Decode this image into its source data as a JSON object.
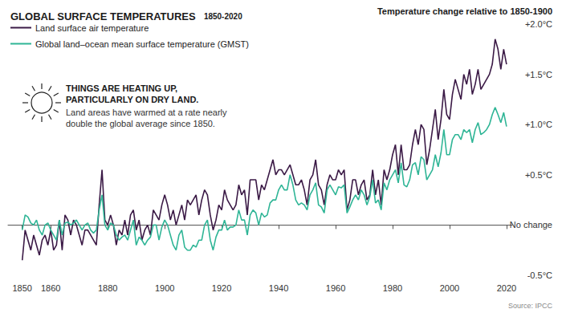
{
  "chart_data": {
    "type": "line",
    "title": "GLOBAL SURFACE TEMPERATURES",
    "subtitle": "1850-2020",
    "y_label": "Temperature change relative to 1850-1900",
    "annotation": {
      "heading": [
        "THINGS ARE HEATING UP,",
        "PARTICULARLY ON DRY LAND."
      ],
      "text": [
        "Land areas have warmed at a rate nearly",
        "double the global average since 1850."
      ]
    },
    "source": "Source: IPCC",
    "legend": "upper left",
    "grid": false,
    "xlim": [
      1845,
      2022
    ],
    "xticks": [
      1850,
      1860,
      1880,
      1900,
      1920,
      1940,
      1960,
      1980,
      2000,
      2020
    ],
    "ylim": [
      -0.5,
      2.0
    ],
    "yticks": [
      {
        "value": -0.5,
        "label": "-0.5°C"
      },
      {
        "value": 0,
        "label": "No change"
      },
      {
        "value": 0.5,
        "label": "+0.5°C"
      },
      {
        "value": 1.0,
        "label": "+1.0°C"
      },
      {
        "value": 1.5,
        "label": "+1.5°C"
      },
      {
        "value": 2.0,
        "label": "+2.0°C"
      }
    ],
    "x": [
      1850,
      1851,
      1852,
      1853,
      1854,
      1855,
      1856,
      1857,
      1858,
      1859,
      1860,
      1861,
      1862,
      1863,
      1864,
      1865,
      1866,
      1867,
      1868,
      1869,
      1870,
      1871,
      1872,
      1873,
      1874,
      1875,
      1876,
      1877,
      1878,
      1879,
      1880,
      1881,
      1882,
      1883,
      1884,
      1885,
      1886,
      1887,
      1888,
      1889,
      1890,
      1891,
      1892,
      1893,
      1894,
      1895,
      1896,
      1897,
      1898,
      1899,
      1900,
      1901,
      1902,
      1903,
      1904,
      1905,
      1906,
      1907,
      1908,
      1909,
      1910,
      1911,
      1912,
      1913,
      1914,
      1915,
      1916,
      1917,
      1918,
      1919,
      1920,
      1921,
      1922,
      1923,
      1924,
      1925,
      1926,
      1927,
      1928,
      1929,
      1930,
      1931,
      1932,
      1933,
      1934,
      1935,
      1936,
      1937,
      1938,
      1939,
      1940,
      1941,
      1942,
      1943,
      1944,
      1945,
      1946,
      1947,
      1948,
      1949,
      1950,
      1951,
      1952,
      1953,
      1954,
      1955,
      1956,
      1957,
      1958,
      1959,
      1960,
      1961,
      1962,
      1963,
      1964,
      1965,
      1966,
      1967,
      1968,
      1969,
      1970,
      1971,
      1972,
      1973,
      1974,
      1975,
      1976,
      1977,
      1978,
      1979,
      1980,
      1981,
      1982,
      1983,
      1984,
      1985,
      1986,
      1987,
      1988,
      1989,
      1990,
      1991,
      1992,
      1993,
      1994,
      1995,
      1996,
      1997,
      1998,
      1999,
      2000,
      2001,
      2002,
      2003,
      2004,
      2005,
      2006,
      2007,
      2008,
      2009,
      2010,
      2011,
      2012,
      2013,
      2014,
      2015,
      2016,
      2017,
      2018,
      2019,
      2020
    ],
    "series": [
      {
        "name": "Land surface air temperature",
        "color": "#3b1a46",
        "line_style": "solid",
        "values": [
          -0.35,
          -0.05,
          -0.15,
          -0.25,
          -0.1,
          -0.2,
          -0.3,
          -0.15,
          -0.1,
          -0.2,
          -0.05,
          -0.25,
          -0.2,
          0.05,
          -0.25,
          0.1,
          0.05,
          -0.1,
          0.05,
          0.0,
          -0.1,
          -0.2,
          -0.05,
          -0.05,
          -0.1,
          -0.15,
          -0.2,
          0.2,
          0.55,
          0.05,
          0.0,
          0.1,
          0.0,
          -0.2,
          -0.05,
          -0.1,
          0.05,
          -0.1,
          0.1,
          0.15,
          -0.05,
          0.05,
          -0.15,
          -0.05,
          0.0,
          -0.1,
          0.15,
          0.1,
          0.05,
          0.2,
          0.3,
          0.2,
          0.05,
          0.15,
          0.0,
          0.1,
          0.2,
          0.05,
          0.25,
          0.2,
          0.25,
          0.3,
          0.1,
          0.25,
          0.35,
          0.3,
          0.1,
          -0.05,
          0.05,
          0.2,
          0.15,
          0.35,
          0.25,
          0.2,
          0.15,
          0.2,
          0.4,
          0.3,
          0.35,
          0.1,
          0.45,
          0.45,
          0.45,
          0.25,
          0.4,
          0.35,
          0.45,
          0.55,
          0.65,
          0.5,
          0.55,
          0.55,
          0.5,
          0.55,
          0.6,
          0.5,
          0.4,
          0.4,
          0.45,
          0.35,
          0.2,
          0.45,
          0.5,
          0.65,
          0.4,
          0.35,
          0.2,
          0.4,
          0.5,
          0.45,
          0.45,
          0.55,
          0.5,
          0.55,
          0.15,
          0.25,
          0.45,
          0.45,
          0.3,
          0.4,
          0.45,
          0.25,
          0.3,
          0.55,
          0.3,
          0.45,
          0.2,
          0.55,
          0.45,
          0.55,
          0.7,
          0.8,
          0.5,
          0.8,
          0.55,
          0.55,
          0.6,
          0.8,
          0.95,
          0.8,
          1.0,
          0.95,
          0.6,
          0.75,
          0.95,
          1.15,
          0.85,
          1.05,
          1.35,
          1.1,
          1.05,
          1.3,
          1.45,
          1.35,
          1.25,
          1.5,
          1.4,
          1.55,
          1.3,
          1.4,
          1.55,
          1.35,
          1.4,
          1.45,
          1.5,
          1.6,
          1.85,
          1.75,
          1.55,
          1.75,
          1.6
        ]
      },
      {
        "name": "Global land–ocean mean surface temperature (GMST)",
        "color": "#2fb596",
        "line_style": "solid",
        "values": [
          -0.05,
          0.1,
          0.08,
          0.02,
          0.0,
          0.05,
          -0.05,
          -0.1,
          0.0,
          0.02,
          -0.05,
          -0.1,
          -0.15,
          0.05,
          -0.1,
          0.02,
          0.03,
          0.0,
          0.02,
          0.05,
          0.0,
          -0.05,
          0.0,
          0.02,
          -0.05,
          -0.08,
          -0.05,
          0.15,
          0.3,
          0.0,
          -0.05,
          0.02,
          0.0,
          -0.1,
          -0.15,
          -0.12,
          -0.1,
          -0.15,
          -0.05,
          0.05,
          -0.2,
          -0.12,
          -0.15,
          -0.2,
          -0.15,
          -0.12,
          0.0,
          0.0,
          -0.15,
          -0.02,
          0.05,
          0.0,
          -0.1,
          -0.2,
          -0.25,
          -0.1,
          -0.05,
          -0.22,
          -0.25,
          -0.25,
          -0.2,
          -0.22,
          -0.15,
          -0.15,
          0.0,
          0.05,
          -0.15,
          -0.25,
          -0.12,
          -0.05,
          -0.05,
          0.05,
          -0.05,
          -0.02,
          -0.02,
          0.0,
          0.15,
          0.05,
          0.05,
          -0.1,
          0.1,
          0.15,
          0.12,
          0.0,
          0.12,
          0.08,
          0.1,
          0.22,
          0.25,
          0.25,
          0.35,
          0.4,
          0.35,
          0.35,
          0.5,
          0.4,
          0.25,
          0.2,
          0.22,
          0.2,
          0.15,
          0.3,
          0.35,
          0.42,
          0.2,
          0.18,
          0.12,
          0.35,
          0.4,
          0.35,
          0.3,
          0.38,
          0.37,
          0.4,
          0.12,
          0.18,
          0.25,
          0.3,
          0.25,
          0.35,
          0.3,
          0.2,
          0.28,
          0.45,
          0.22,
          0.25,
          0.15,
          0.42,
          0.35,
          0.45,
          0.5,
          0.55,
          0.42,
          0.62,
          0.4,
          0.38,
          0.45,
          0.6,
          0.62,
          0.5,
          0.68,
          0.65,
          0.45,
          0.5,
          0.55,
          0.7,
          0.58,
          0.72,
          0.95,
          0.7,
          0.7,
          0.85,
          0.9,
          0.9,
          0.85,
          0.95,
          0.92,
          0.95,
          0.82,
          0.95,
          1.02,
          0.9,
          0.92,
          0.95,
          1.0,
          1.1,
          1.17,
          1.1,
          1.02,
          1.12,
          0.98
        ]
      }
    ]
  }
}
